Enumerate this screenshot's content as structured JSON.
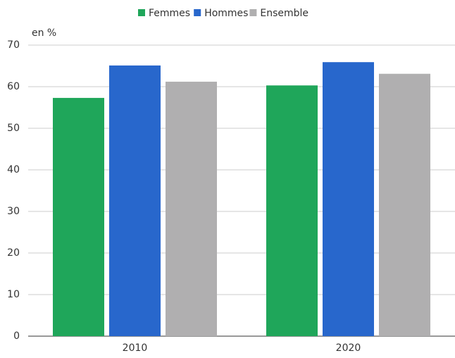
{
  "chart_data": {
    "type": "bar",
    "ylabel": "en %",
    "categories": [
      "2010",
      "2020"
    ],
    "series": [
      {
        "name": "Femmes",
        "color": "#1fa65a",
        "values": [
          57.3,
          60.3
        ]
      },
      {
        "name": "Hommes",
        "color": "#2867cc",
        "values": [
          65.1,
          65.9
        ]
      },
      {
        "name": "Ensemble",
        "color": "#b0afb0",
        "values": [
          61.2,
          63.1
        ]
      }
    ],
    "ylim": [
      0,
      70
    ],
    "yticks": [
      0,
      10,
      20,
      30,
      40,
      50,
      60,
      70
    ],
    "grid": true,
    "legend": "top"
  }
}
